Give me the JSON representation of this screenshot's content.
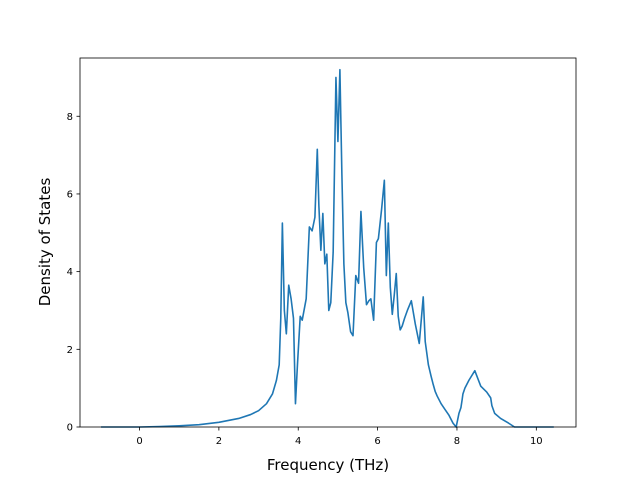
{
  "chart_data": {
    "type": "line",
    "title": "",
    "xlabel": "Frequency (THz)",
    "ylabel": "Density of States",
    "xlim": [
      -1.5,
      11.0
    ],
    "ylim": [
      0,
      9.5
    ],
    "xticks": [
      0,
      2,
      4,
      6,
      8,
      10
    ],
    "yticks": [
      0,
      2,
      4,
      6,
      8
    ],
    "grid": false,
    "legend": "none",
    "line_color": "#1f77b4",
    "series": [
      {
        "name": "",
        "x": [
          -0.95,
          -0.5,
          0.0,
          0.5,
          1.0,
          1.5,
          2.0,
          2.5,
          2.8,
          3.0,
          3.2,
          3.35,
          3.45,
          3.52,
          3.56,
          3.6,
          3.65,
          3.7,
          3.76,
          3.82,
          3.88,
          3.93,
          3.98,
          4.05,
          4.1,
          4.2,
          4.28,
          4.35,
          4.42,
          4.48,
          4.52,
          4.57,
          4.62,
          4.67,
          4.72,
          4.77,
          4.82,
          4.88,
          4.95,
          5.0,
          5.05,
          5.1,
          5.15,
          5.2,
          5.25,
          5.32,
          5.38,
          5.45,
          5.52,
          5.58,
          5.65,
          5.72,
          5.78,
          5.83,
          5.9,
          5.97,
          6.02,
          6.1,
          6.17,
          6.22,
          6.27,
          6.32,
          6.37,
          6.42,
          6.47,
          6.52,
          6.57,
          6.62,
          6.68,
          6.75,
          6.85,
          6.95,
          7.05,
          7.15,
          7.2,
          7.28,
          7.35,
          7.4,
          7.45,
          7.5,
          7.6,
          7.7,
          7.8,
          7.9,
          7.98,
          8.05,
          8.1,
          8.13,
          8.15,
          8.2,
          8.3,
          8.45,
          8.6,
          8.75,
          8.85,
          8.88,
          8.95,
          9.1,
          9.3,
          9.45,
          9.55,
          9.8,
          10.1,
          10.42
        ],
        "y": [
          0.0,
          0.0,
          0.0,
          0.01,
          0.03,
          0.06,
          0.12,
          0.22,
          0.32,
          0.42,
          0.6,
          0.85,
          1.2,
          1.6,
          2.8,
          5.25,
          3.0,
          2.4,
          3.65,
          3.3,
          2.8,
          0.6,
          1.6,
          2.85,
          2.75,
          3.3,
          5.15,
          5.05,
          5.4,
          7.15,
          5.7,
          4.55,
          5.5,
          4.2,
          4.45,
          3.0,
          3.2,
          4.5,
          9.0,
          7.35,
          9.2,
          6.5,
          4.2,
          3.2,
          2.95,
          2.45,
          2.35,
          3.9,
          3.7,
          5.55,
          4.1,
          3.15,
          3.25,
          3.3,
          2.75,
          4.75,
          4.85,
          5.6,
          6.35,
          3.9,
          5.25,
          3.6,
          2.9,
          3.4,
          3.95,
          2.85,
          2.5,
          2.6,
          2.8,
          3.0,
          3.25,
          2.65,
          2.15,
          3.35,
          2.2,
          1.6,
          1.3,
          1.1,
          0.92,
          0.8,
          0.6,
          0.45,
          0.3,
          0.1,
          0.0,
          0.35,
          0.5,
          0.7,
          0.85,
          1.0,
          1.2,
          1.45,
          1.05,
          0.9,
          0.75,
          0.55,
          0.35,
          0.22,
          0.1,
          0.0,
          0.0,
          0.0,
          0.0,
          0.0
        ]
      }
    ]
  }
}
